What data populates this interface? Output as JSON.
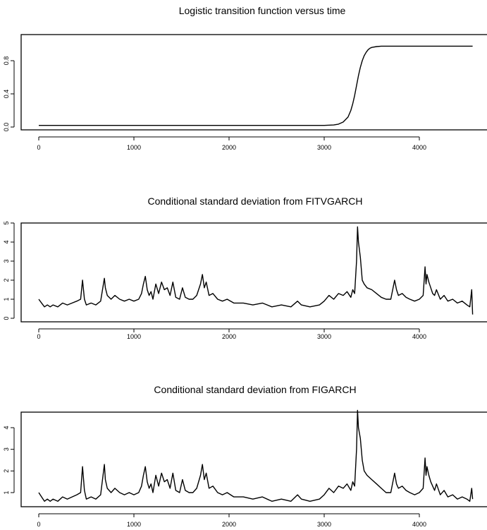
{
  "chart_data": [
    {
      "type": "line",
      "title": "Logistic transition function versus time",
      "xlabel": "",
      "ylabel": "",
      "xlim": [
        0,
        4620
      ],
      "ylim": [
        0,
        1
      ],
      "xticks": [
        0,
        1000,
        2000,
        3000,
        4000
      ],
      "xtick_labels": [
        "0",
        "1000",
        "2000",
        "3000",
        "4000"
      ],
      "yticks": [
        0.0,
        0.4,
        0.8
      ],
      "ytick_labels": [
        "0.0",
        "0.4",
        "0.8"
      ],
      "grid": false,
      "legend": "none",
      "series": [
        {
          "x": [
            0,
            3000,
            3100,
            3150,
            3200,
            3250,
            3280,
            3300,
            3320,
            3340,
            3360,
            3380,
            3400,
            3420,
            3440,
            3460,
            3480,
            3500,
            3550,
            3600,
            3700,
            4560
          ],
          "values": [
            0.02,
            0.02,
            0.025,
            0.035,
            0.06,
            0.12,
            0.2,
            0.28,
            0.38,
            0.5,
            0.62,
            0.72,
            0.8,
            0.86,
            0.9,
            0.93,
            0.95,
            0.96,
            0.97,
            0.975,
            0.975,
            0.975
          ]
        }
      ]
    },
    {
      "type": "line",
      "title": "Conditional standard deviation from FITVGARCH",
      "xlabel": "",
      "ylabel": "",
      "xlim": [
        0,
        4620
      ],
      "ylim": [
        0,
        5
      ],
      "xticks": [
        0,
        1000,
        2000,
        3000,
        4000
      ],
      "xtick_labels": [
        "0",
        "1000",
        "2000",
        "3000",
        "4000"
      ],
      "yticks": [
        0,
        1,
        2,
        3,
        4,
        5
      ],
      "ytick_labels": [
        "0",
        "1",
        "2",
        "3",
        "4",
        "5"
      ],
      "grid": false,
      "legend": "none",
      "series": [
        {
          "x": [
            0,
            30,
            60,
            90,
            120,
            150,
            200,
            250,
            300,
            350,
            400,
            440,
            460,
            480,
            500,
            550,
            600,
            650,
            690,
            700,
            720,
            760,
            800,
            850,
            900,
            950,
            1000,
            1050,
            1080,
            1100,
            1120,
            1140,
            1160,
            1180,
            1200,
            1230,
            1260,
            1290,
            1320,
            1350,
            1380,
            1410,
            1440,
            1480,
            1510,
            1540,
            1580,
            1620,
            1660,
            1700,
            1720,
            1740,
            1760,
            1790,
            1830,
            1880,
            1930,
            1980,
            2050,
            2150,
            2250,
            2350,
            2450,
            2550,
            2650,
            2720,
            2760,
            2850,
            2950,
            3000,
            3050,
            3100,
            3150,
            3200,
            3240,
            3280,
            3300,
            3320,
            3340,
            3350,
            3360,
            3380,
            3400,
            3420,
            3450,
            3500,
            3550,
            3600,
            3650,
            3700,
            3740,
            3760,
            3780,
            3820,
            3860,
            3900,
            3950,
            4000,
            4040,
            4060,
            4070,
            4080,
            4100,
            4120,
            4140,
            4160,
            4180,
            4220,
            4260,
            4300,
            4350,
            4400,
            4450,
            4500,
            4530,
            4550,
            4560
          ],
          "values": [
            1.0,
            0.8,
            0.6,
            0.7,
            0.6,
            0.7,
            0.6,
            0.8,
            0.7,
            0.8,
            0.9,
            1.0,
            2.0,
            1.0,
            0.7,
            0.8,
            0.7,
            0.9,
            2.1,
            1.6,
            1.2,
            1.0,
            1.2,
            1.0,
            0.9,
            1.0,
            0.9,
            1.0,
            1.3,
            1.8,
            2.2,
            1.5,
            1.2,
            1.4,
            1.0,
            1.8,
            1.3,
            1.9,
            1.5,
            1.6,
            1.2,
            1.9,
            1.1,
            1.0,
            1.6,
            1.1,
            1.0,
            1.0,
            1.2,
            1.8,
            2.3,
            1.6,
            1.9,
            1.2,
            1.3,
            1.0,
            0.9,
            1.0,
            0.8,
            0.8,
            0.7,
            0.8,
            0.6,
            0.7,
            0.6,
            0.9,
            0.7,
            0.6,
            0.7,
            0.9,
            1.2,
            1.0,
            1.3,
            1.2,
            1.4,
            1.1,
            1.5,
            1.3,
            3.0,
            4.8,
            4.0,
            3.2,
            2.0,
            1.8,
            1.6,
            1.5,
            1.3,
            1.1,
            1.0,
            1.0,
            2.0,
            1.5,
            1.2,
            1.3,
            1.1,
            1.0,
            0.9,
            1.0,
            1.2,
            2.7,
            1.8,
            2.3,
            1.9,
            1.6,
            1.3,
            1.2,
            1.5,
            1.0,
            1.2,
            0.9,
            1.0,
            0.8,
            0.9,
            0.7,
            0.6,
            1.5,
            0.2
          ]
        }
      ]
    },
    {
      "type": "line",
      "title": "Conditional standard deviation from FIGARCH",
      "xlabel": "",
      "ylabel": "",
      "xlim": [
        0,
        4620
      ],
      "ylim": [
        0.5,
        4.9
      ],
      "xticks": [
        0,
        1000,
        2000,
        3000,
        4000
      ],
      "xtick_labels": [
        "0",
        "1000",
        "2000",
        "3000",
        "4000"
      ],
      "yticks": [
        1,
        2,
        3,
        4
      ],
      "ytick_labels": [
        "1",
        "2",
        "3",
        "4"
      ],
      "grid": false,
      "legend": "none",
      "series": [
        {
          "x": [
            0,
            30,
            60,
            90,
            120,
            150,
            200,
            250,
            300,
            350,
            400,
            440,
            460,
            480,
            500,
            550,
            600,
            650,
            690,
            700,
            720,
            760,
            800,
            850,
            900,
            950,
            1000,
            1050,
            1080,
            1100,
            1120,
            1140,
            1160,
            1180,
            1200,
            1230,
            1260,
            1290,
            1320,
            1350,
            1380,
            1410,
            1440,
            1480,
            1510,
            1540,
            1580,
            1620,
            1660,
            1700,
            1720,
            1740,
            1760,
            1790,
            1830,
            1880,
            1930,
            1980,
            2050,
            2150,
            2250,
            2350,
            2450,
            2550,
            2650,
            2720,
            2760,
            2850,
            2950,
            3000,
            3050,
            3100,
            3150,
            3200,
            3240,
            3280,
            3300,
            3320,
            3340,
            3350,
            3360,
            3380,
            3400,
            3420,
            3450,
            3500,
            3550,
            3600,
            3650,
            3700,
            3740,
            3760,
            3780,
            3820,
            3860,
            3900,
            3950,
            4000,
            4040,
            4060,
            4070,
            4080,
            4100,
            4120,
            4140,
            4160,
            4180,
            4220,
            4260,
            4300,
            4350,
            4400,
            4450,
            4500,
            4530,
            4550,
            4560
          ],
          "values": [
            1.0,
            0.8,
            0.6,
            0.7,
            0.6,
            0.7,
            0.6,
            0.8,
            0.7,
            0.8,
            0.9,
            1.0,
            2.2,
            1.1,
            0.7,
            0.8,
            0.7,
            0.9,
            2.3,
            1.6,
            1.2,
            1.0,
            1.2,
            1.0,
            0.9,
            1.0,
            0.9,
            1.0,
            1.3,
            1.8,
            2.2,
            1.5,
            1.2,
            1.4,
            1.0,
            1.8,
            1.3,
            1.9,
            1.5,
            1.6,
            1.2,
            1.9,
            1.1,
            1.0,
            1.6,
            1.1,
            1.0,
            1.0,
            1.2,
            1.8,
            2.3,
            1.6,
            1.9,
            1.2,
            1.3,
            1.0,
            0.9,
            1.0,
            0.8,
            0.8,
            0.7,
            0.8,
            0.6,
            0.7,
            0.6,
            0.9,
            0.7,
            0.6,
            0.7,
            0.9,
            1.2,
            1.0,
            1.3,
            1.2,
            1.4,
            1.1,
            1.5,
            1.3,
            3.0,
            4.8,
            4.0,
            3.5,
            2.5,
            2.0,
            1.8,
            1.6,
            1.4,
            1.2,
            1.0,
            1.0,
            1.9,
            1.4,
            1.2,
            1.3,
            1.1,
            1.0,
            0.9,
            1.0,
            1.2,
            2.6,
            1.8,
            2.2,
            1.8,
            1.5,
            1.3,
            1.1,
            1.4,
            0.9,
            1.1,
            0.8,
            0.9,
            0.7,
            0.8,
            0.7,
            0.6,
            1.2,
            0.7
          ]
        }
      ]
    }
  ]
}
